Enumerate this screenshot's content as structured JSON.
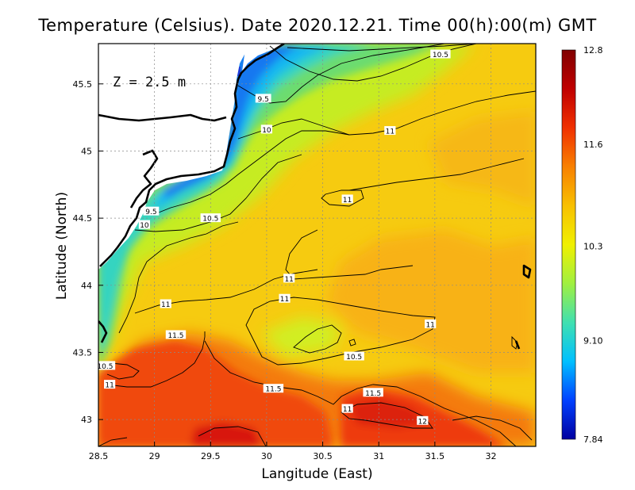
{
  "title": "Temperature (Celsius). Date 2020.12.21. Time 00(h):00(m)  GMT",
  "depth_label": "Z = 2.5 m",
  "chart_data": {
    "type": "heatmap",
    "xlabel": "Langitude (East)",
    "ylabel": "Latitude (North)",
    "xlim": [
      28.5,
      32.4
    ],
    "ylim": [
      42.8,
      45.8
    ],
    "x_ticks": [
      "28.5",
      "29",
      "29.5",
      "30",
      "30.5",
      "31",
      "31.5",
      "32"
    ],
    "y_ticks": [
      "45.5",
      "45",
      "44.5",
      "44",
      "43.5",
      "43"
    ],
    "grid": true,
    "colorbar": {
      "min": 7.84,
      "max": 12.8,
      "tick_labels": [
        "12.8",
        "11.6",
        "10.3",
        "9.10",
        "7.84"
      ],
      "colors": [
        "#0000a0",
        "#0040ff",
        "#00c0ff",
        "#40e0b0",
        "#a0f040",
        "#f0f000",
        "#f8c000",
        "#f88000",
        "#f03000",
        "#c00000",
        "#800000"
      ]
    },
    "contour_labels": [
      {
        "text": "10.5",
        "lon": 31.55,
        "lat": 45.72
      },
      {
        "text": "9.5",
        "lon": 29.97,
        "lat": 45.39
      },
      {
        "text": "10",
        "lon": 30.0,
        "lat": 45.16
      },
      {
        "text": "11",
        "lon": 31.1,
        "lat": 45.15
      },
      {
        "text": "11",
        "lon": 30.72,
        "lat": 44.64
      },
      {
        "text": "9.5",
        "lon": 28.97,
        "lat": 44.55
      },
      {
        "text": "10",
        "lon": 28.91,
        "lat": 44.45
      },
      {
        "text": "10.5",
        "lon": 29.5,
        "lat": 44.5
      },
      {
        "text": "11",
        "lon": 30.2,
        "lat": 44.05
      },
      {
        "text": "11",
        "lon": 30.16,
        "lat": 43.9
      },
      {
        "text": "11",
        "lon": 29.1,
        "lat": 43.86
      },
      {
        "text": "11",
        "lon": 31.46,
        "lat": 43.71
      },
      {
        "text": "11.5",
        "lon": 29.19,
        "lat": 43.63
      },
      {
        "text": "10.5",
        "lon": 30.78,
        "lat": 43.47
      },
      {
        "text": "10.5",
        "lon": 28.56,
        "lat": 43.4
      },
      {
        "text": "11",
        "lon": 28.6,
        "lat": 43.26
      },
      {
        "text": "11.5",
        "lon": 30.06,
        "lat": 43.23
      },
      {
        "text": "11.5",
        "lon": 30.95,
        "lat": 43.2
      },
      {
        "text": "11",
        "lon": 30.72,
        "lat": 43.08
      },
      {
        "text": "12",
        "lon": 31.39,
        "lat": 42.99
      }
    ]
  }
}
